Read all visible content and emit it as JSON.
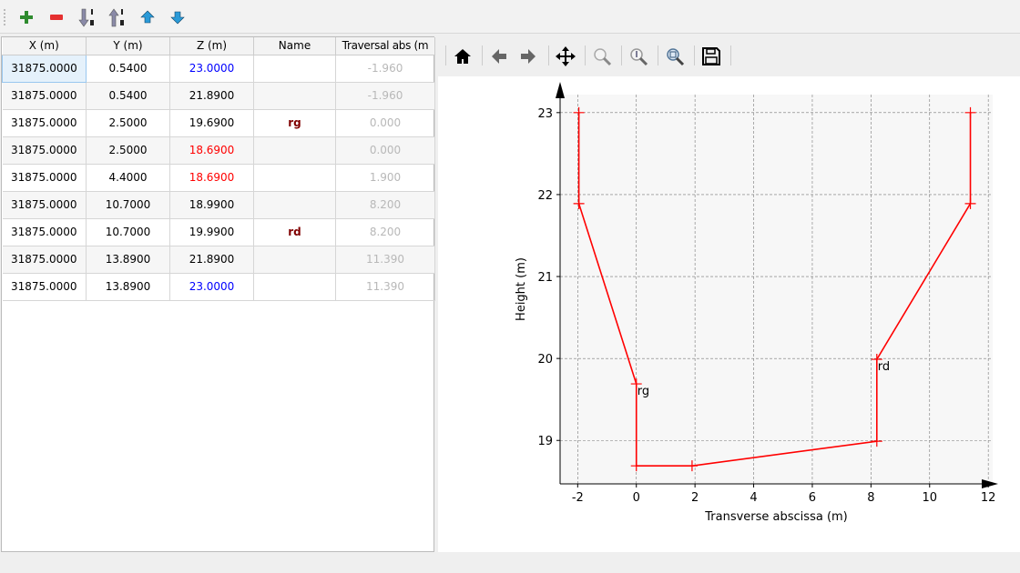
{
  "toolbar": {
    "items": [
      {
        "name": "add-row-button",
        "icon": "plus-icon"
      },
      {
        "name": "remove-row-button",
        "icon": "minus-icon"
      },
      {
        "name": "sort-ascending-button",
        "icon": "sort-down-icon"
      },
      {
        "name": "sort-descending-button",
        "icon": "sort-up-icon"
      },
      {
        "name": "move-up-button",
        "icon": "arrow-up-icon"
      },
      {
        "name": "move-down-button",
        "icon": "arrow-down-icon"
      }
    ]
  },
  "table": {
    "headers": [
      "X (m)",
      "Y (m)",
      "Z (m)",
      "Name",
      "Traversal abs (m"
    ],
    "rows": [
      {
        "x": "31875.0000",
        "y": "0.5400",
        "z": "23.0000",
        "z_color": "#0000ff",
        "name": "",
        "abs": "-1.960"
      },
      {
        "x": "31875.0000",
        "y": "0.5400",
        "z": "21.8900",
        "z_color": "#000000",
        "name": "",
        "abs": "-1.960"
      },
      {
        "x": "31875.0000",
        "y": "2.5000",
        "z": "19.6900",
        "z_color": "#000000",
        "name": "rg",
        "abs": "0.000"
      },
      {
        "x": "31875.0000",
        "y": "2.5000",
        "z": "18.6900",
        "z_color": "#ff0000",
        "name": "",
        "abs": "0.000"
      },
      {
        "x": "31875.0000",
        "y": "4.4000",
        "z": "18.6900",
        "z_color": "#ff0000",
        "name": "",
        "abs": "1.900"
      },
      {
        "x": "31875.0000",
        "y": "10.7000",
        "z": "18.9900",
        "z_color": "#000000",
        "name": "",
        "abs": "8.200"
      },
      {
        "x": "31875.0000",
        "y": "10.7000",
        "z": "19.9900",
        "z_color": "#000000",
        "name": "rd",
        "abs": "8.200"
      },
      {
        "x": "31875.0000",
        "y": "13.8900",
        "z": "21.8900",
        "z_color": "#000000",
        "name": "",
        "abs": "11.390"
      },
      {
        "x": "31875.0000",
        "y": "13.8900",
        "z": "23.0000",
        "z_color": "#0000ff",
        "name": "",
        "abs": "11.390"
      }
    ]
  },
  "plot_toolbar": [
    "home-icon",
    "back-icon",
    "forward-icon",
    "pan-icon",
    "zoom-icon",
    "zoom-info-icon",
    "zoom-fit-icon",
    "save-icon"
  ],
  "chart_data": {
    "type": "line",
    "xlabel": "Transverse abscissa (m)",
    "ylabel": "Height (m)",
    "xlim": [
      -2.6,
      12.15
    ],
    "ylim": [
      18.47,
      23.22
    ],
    "xticks": [
      -2,
      0,
      2,
      4,
      6,
      8,
      10,
      12
    ],
    "yticks": [
      19,
      20,
      21,
      22,
      23
    ],
    "grid": true,
    "color": "#ff0000",
    "x": [
      -1.96,
      -1.96,
      0,
      0,
      1.9,
      8.2,
      8.2,
      11.39,
      11.39
    ],
    "y": [
      23,
      21.89,
      19.69,
      18.69,
      18.69,
      18.99,
      19.99,
      21.89,
      23
    ],
    "annotations": [
      {
        "text": "rg",
        "x": 0,
        "y": 19.69
      },
      {
        "text": "rd",
        "x": 8.2,
        "y": 19.99
      }
    ]
  }
}
